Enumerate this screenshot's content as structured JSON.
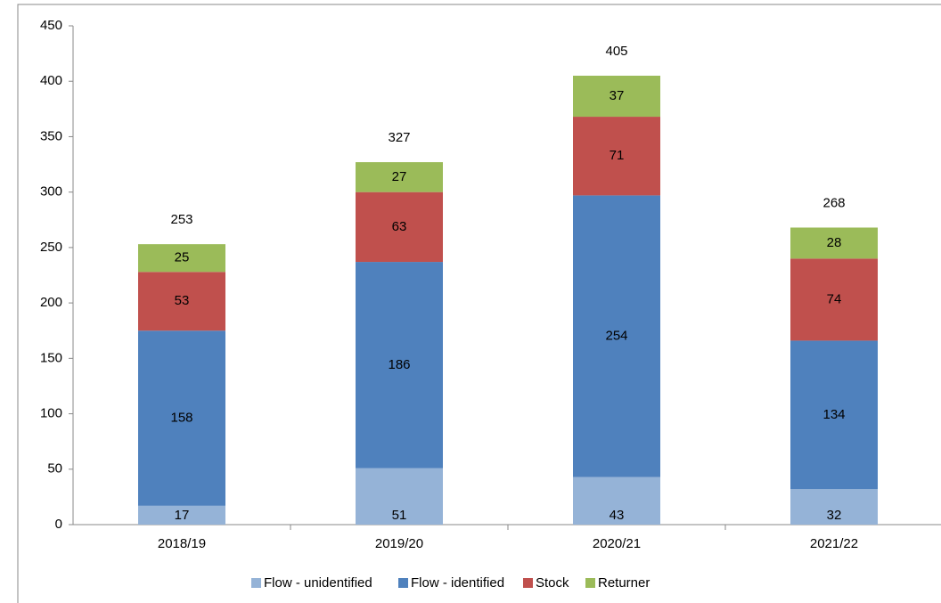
{
  "chart_data": {
    "type": "stacked_bar",
    "categories": [
      "2018/19",
      "2019/20",
      "2020/21",
      "2021/22"
    ],
    "series": [
      {
        "name": "Flow - unidentified",
        "color": "#95b3d7",
        "values": [
          17,
          51,
          43,
          32
        ]
      },
      {
        "name": "Flow - identified",
        "color": "#4f81bd",
        "values": [
          158,
          186,
          254,
          134
        ]
      },
      {
        "name": "Stock",
        "color": "#c0504d",
        "values": [
          53,
          63,
          71,
          74
        ]
      },
      {
        "name": "Returner",
        "color": "#9bbb59",
        "values": [
          25,
          27,
          37,
          28
        ]
      }
    ],
    "totals": [
      253,
      327,
      405,
      268
    ],
    "ylim": [
      0,
      450
    ],
    "yticks": [
      0,
      50,
      100,
      150,
      200,
      250,
      300,
      350,
      400,
      450
    ],
    "grid": false,
    "legend": "bottom"
  }
}
